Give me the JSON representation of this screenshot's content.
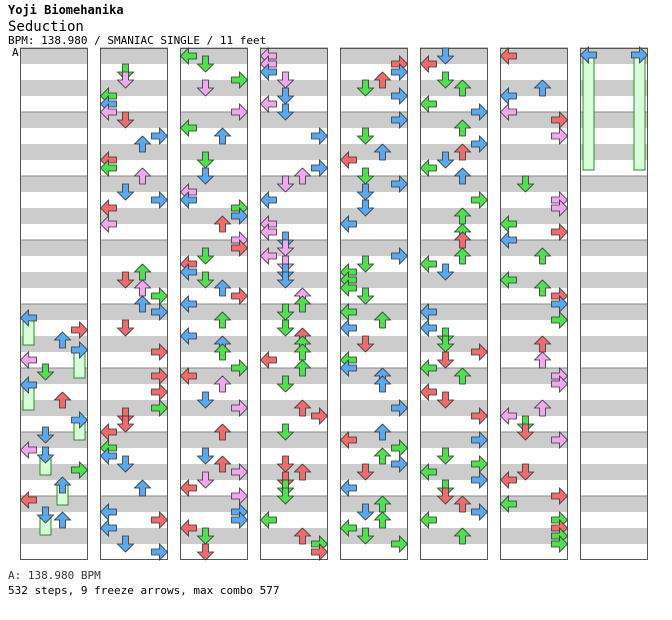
{
  "header": {
    "artist": "Yoji Biomehanika",
    "title": "Seduction",
    "info": "BPM: 138.980 / SMANIAC SINGLE / 11 feet",
    "marker": "A"
  },
  "footer": {
    "bpm_line": "A: 138.980 BPM",
    "stats_line": "532 steps, 9 freeze arrows, max combo 577"
  },
  "colors": {
    "blue": "#5aa8f0",
    "red": "#f06c6c",
    "green": "#4fe04f",
    "pink": "#f2a8f0",
    "stripe": "#cccccc",
    "freeze": "#d8ffd8"
  },
  "chart_data": {
    "type": "table",
    "columns": 8,
    "measures_per_column": 8,
    "total_steps": 532,
    "freeze_arrows": 9,
    "max_combo": 577,
    "bpm": 138.98,
    "difficulty": "SMANIAC SINGLE",
    "feet": 11,
    "lane_order": [
      "left",
      "down",
      "up",
      "right"
    ],
    "color_legend": {
      "quarter": "red",
      "eighth": "blue",
      "twelfth": "pink",
      "sixteenth": "green"
    }
  }
}
